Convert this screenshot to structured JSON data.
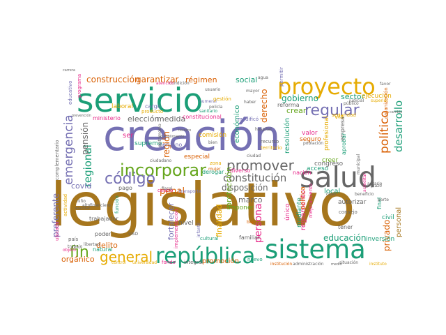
{
  "palette": {
    "green": "#1b9e77",
    "orange": "#d95f02",
    "purple": "#7570b3",
    "magenta": "#e7298a",
    "lime": "#66a61e",
    "gold": "#e6ab02",
    "brown": "#a6761d",
    "gray": "#666666"
  },
  "words": [
    {
      "text": "legislativo",
      "color": "brown"
    },
    {
      "text": "creación",
      "color": "purple"
    },
    {
      "text": "servicio",
      "color": "green"
    },
    {
      "text": "república",
      "color": "green"
    },
    {
      "text": "sistema",
      "color": "green"
    },
    {
      "text": "proyecto",
      "color": "gold"
    },
    {
      "text": "salud",
      "color": "gray"
    },
    {
      "text": "regular",
      "color": "purple"
    },
    {
      "text": "incorporar",
      "color": "lime"
    },
    {
      "text": "código",
      "color": "purple"
    },
    {
      "text": "promover",
      "color": "gray"
    },
    {
      "text": "general",
      "color": "gold"
    },
    {
      "text": "emergencia",
      "color": "purple"
    },
    {
      "text": "regional",
      "color": "green"
    },
    {
      "text": "desarrollo",
      "color": "green"
    },
    {
      "text": "político",
      "color": "orange"
    },
    {
      "text": "constitución",
      "color": "gray"
    },
    {
      "text": "fin",
      "color": "lime"
    },
    {
      "text": "construcción",
      "color": "orange"
    },
    {
      "text": "garantizar",
      "color": "orange"
    },
    {
      "text": "persona",
      "color": "magenta"
    },
    {
      "text": "disposición",
      "color": "gray"
    },
    {
      "text": "penal",
      "color": "orange"
    },
    {
      "text": "gobierno",
      "color": "green"
    },
    {
      "text": "derecho",
      "color": "orange"
    },
    {
      "text": "educación",
      "color": "green"
    },
    {
      "text": "privado",
      "color": "orange"
    },
    {
      "text": "personal",
      "color": "brown"
    },
    {
      "text": "preferente",
      "color": "purple"
    },
    {
      "text": "elección",
      "color": "gray"
    },
    {
      "text": "medida",
      "color": "gray"
    },
    {
      "text": "pensión",
      "color": "gray"
    },
    {
      "text": "social",
      "color": "green"
    },
    {
      "text": "régimen",
      "color": "orange"
    },
    {
      "text": "nivel",
      "color": "gray"
    },
    {
      "text": "fortalecer",
      "color": "purple"
    },
    {
      "text": "sector",
      "color": "green"
    },
    {
      "text": "región",
      "color": "orange"
    },
    {
      "text": "delito",
      "color": "orange"
    },
    {
      "text": "orgánico",
      "color": "orange"
    },
    {
      "text": "promoción",
      "color": "orange"
    },
    {
      "text": "marco",
      "color": "gray"
    },
    {
      "text": "finalidad",
      "color": "gold"
    },
    {
      "text": "protección",
      "color": "lime"
    },
    {
      "text": "especial",
      "color": "orange"
    },
    {
      "text": "covid",
      "color": "purple"
    },
    {
      "text": "ser",
      "color": "magenta"
    },
    {
      "text": "local",
      "color": "green"
    },
    {
      "text": "ejecución",
      "color": "gold"
    },
    {
      "text": "reglamento",
      "color": "magenta"
    },
    {
      "text": "crear",
      "color": "lime"
    },
    {
      "text": "valor",
      "color": "magenta"
    },
    {
      "text": "seguro",
      "color": "orange"
    },
    {
      "text": "congreso",
      "color": "gray"
    },
    {
      "text": "acceso",
      "color": "green"
    },
    {
      "text": "vía",
      "color": "gold"
    },
    {
      "text": "nación",
      "color": "magenta"
    },
    {
      "text": "económico",
      "color": "green"
    },
    {
      "text": "resolución",
      "color": "green"
    },
    {
      "text": "comisión",
      "color": "gold"
    },
    {
      "text": "trabajador",
      "color": "gray"
    },
    {
      "text": "inversión",
      "color": "green"
    },
    {
      "text": "autorizar",
      "color": "gray"
    },
    {
      "text": "mediante",
      "color": "green"
    },
    {
      "text": "reforma",
      "color": "gray"
    },
    {
      "text": "disponer",
      "color": "lime"
    },
    {
      "text": "laboral",
      "color": "gold"
    },
    {
      "text": "supremo",
      "color": "green"
    },
    {
      "text": "ministerio",
      "color": "magenta"
    },
    {
      "text": "peruano",
      "color": "purple"
    },
    {
      "text": "cargo",
      "color": "purple"
    },
    {
      "text": "producto",
      "color": "gold"
    },
    {
      "text": "diverso",
      "color": "magenta"
    },
    {
      "text": "derogar",
      "color": "green"
    },
    {
      "text": "pago",
      "color": "gray"
    },
    {
      "text": "civil",
      "color": "green"
    },
    {
      "text": "final",
      "color": "green"
    },
    {
      "text": "familiar",
      "color": "gray"
    },
    {
      "text": "único",
      "color": "magenta"
    },
    {
      "text": "política",
      "color": "orange"
    },
    {
      "text": "natural",
      "color": "green"
    },
    {
      "text": "poder",
      "color": "gray"
    },
    {
      "text": "uso",
      "color": "gray"
    },
    {
      "text": "tener",
      "color": "gray"
    },
    {
      "text": "fondo",
      "color": "magenta"
    },
    {
      "text": "nuevo",
      "color": "green"
    },
    {
      "text": "situación",
      "color": "gray"
    },
    {
      "text": "cultural",
      "color": "green"
    },
    {
      "text": "integral",
      "color": "gray"
    },
    {
      "text": "actividad",
      "color": "gold"
    },
    {
      "text": "control",
      "color": "gold"
    },
    {
      "text": "universidad",
      "color": "gold"
    },
    {
      "text": "administración",
      "color": "gray"
    },
    {
      "text": "institución",
      "color": "orange"
    },
    {
      "text": "instituto",
      "color": "gold"
    },
    {
      "text": "bajo",
      "color": "orange"
    },
    {
      "text": "alto",
      "color": "gray"
    },
    {
      "text": "centro",
      "color": "magenta"
    },
    {
      "text": "transporte",
      "color": "purple"
    },
    {
      "text": "zona",
      "color": "gold"
    },
    {
      "text": "mujer",
      "color": "orange"
    },
    {
      "text": "fiscal",
      "color": "gray"
    },
    {
      "text": "mayor",
      "color": "gray"
    },
    {
      "text": "haber",
      "color": "gray"
    },
    {
      "text": "numeral",
      "color": "purple"
    },
    {
      "text": "sanitario",
      "color": "green"
    },
    {
      "text": "agua",
      "color": "gray"
    },
    {
      "text": "policía",
      "color": "gray"
    },
    {
      "text": "gestión",
      "color": "gold"
    },
    {
      "text": "modificó",
      "color": "purple"
    },
    {
      "text": "territorio",
      "color": "gold"
    },
    {
      "text": "recurso",
      "color": "gray"
    },
    {
      "text": "creer",
      "color": "lime"
    },
    {
      "text": "profesional",
      "color": "gold"
    },
    {
      "text": "empresa",
      "color": "gray"
    },
    {
      "text": "aprobar",
      "color": "green"
    },
    {
      "text": "seguridad",
      "color": "gold"
    },
    {
      "text": "organización",
      "color": "orange"
    },
    {
      "text": "superior",
      "color": "gold"
    },
    {
      "text": "judicial",
      "color": "gray"
    },
    {
      "text": "público",
      "color": "gray"
    },
    {
      "text": "consejo",
      "color": "gray"
    },
    {
      "text": "mejoramiento",
      "color": "magenta"
    },
    {
      "text": "complementario",
      "color": "gray"
    },
    {
      "text": "ubicado",
      "color": "magenta"
    },
    {
      "text": "país",
      "color": "gray"
    },
    {
      "text": "objeto",
      "color": "magenta"
    },
    {
      "text": "educativo",
      "color": "purple"
    },
    {
      "text": "programa",
      "color": "magenta"
    },
    {
      "text": "ciudadano",
      "color": "gray"
    },
    {
      "text": "condición",
      "color": "gray"
    },
    {
      "text": "atención",
      "color": "magenta"
    },
    {
      "text": "favor",
      "color": "gray"
    },
    {
      "text": "cambio",
      "color": "gray"
    },
    {
      "text": "municipal",
      "color": "gray"
    },
    {
      "text": "función",
      "color": "green"
    },
    {
      "text": "financiero",
      "color": "gray"
    },
    {
      "text": "libertad",
      "color": "gray"
    },
    {
      "text": "trabajo",
      "color": "gray"
    },
    {
      "text": "implementación",
      "color": "magenta"
    },
    {
      "text": "constitucional",
      "color": "magenta"
    },
    {
      "text": "beneficio",
      "color": "gray"
    },
    {
      "text": "parte",
      "color": "gray"
    },
    {
      "text": "medio",
      "color": "gray"
    },
    {
      "text": "cumplimiento",
      "color": "gray"
    },
    {
      "text": "patrimonio",
      "color": "gray"
    },
    {
      "text": "niño",
      "color": "gray"
    },
    {
      "text": "escolar",
      "color": "gray"
    },
    {
      "text": "prevención",
      "color": "gray"
    },
    {
      "text": "técnico",
      "color": "gray"
    },
    {
      "text": "ciudad",
      "color": "gray"
    },
    {
      "text": "hospital",
      "color": "gray"
    },
    {
      "text": "bien",
      "color": "gray"
    },
    {
      "text": "usuario",
      "color": "gray"
    },
    {
      "text": "agrario",
      "color": "gray"
    },
    {
      "text": "caso",
      "color": "gray"
    },
    {
      "text": "población",
      "color": "gray"
    },
    {
      "text": "carrera",
      "color": "gray"
    },
    {
      "text": "permitir",
      "color": "purple"
    },
    {
      "text": "infantil",
      "color": "purple"
    },
    {
      "text": "acreditar",
      "color": "magenta"
    },
    {
      "text": "plazo",
      "color": "gray"
    }
  ]
}
